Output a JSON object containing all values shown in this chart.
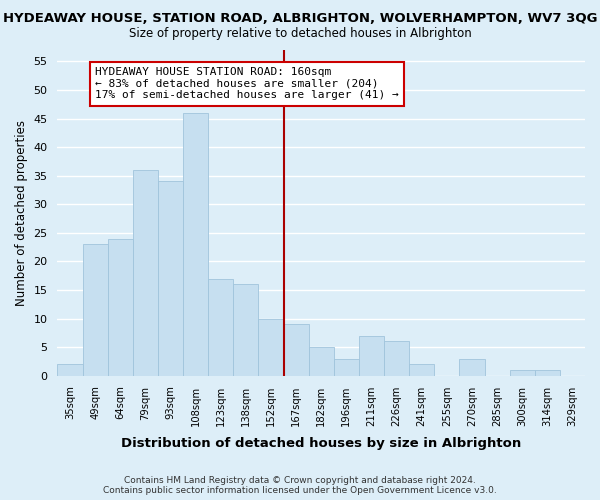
{
  "title": "HYDEAWAY HOUSE, STATION ROAD, ALBRIGHTON, WOLVERHAMPTON, WV7 3QG",
  "subtitle": "Size of property relative to detached houses in Albrighton",
  "xlabel": "Distribution of detached houses by size in Albrighton",
  "ylabel": "Number of detached properties",
  "bar_labels": [
    "35sqm",
    "49sqm",
    "64sqm",
    "79sqm",
    "93sqm",
    "108sqm",
    "123sqm",
    "138sqm",
    "152sqm",
    "167sqm",
    "182sqm",
    "196sqm",
    "211sqm",
    "226sqm",
    "241sqm",
    "255sqm",
    "270sqm",
    "285sqm",
    "300sqm",
    "314sqm",
    "329sqm"
  ],
  "bar_values": [
    2,
    23,
    24,
    36,
    34,
    46,
    17,
    16,
    10,
    9,
    5,
    3,
    7,
    6,
    2,
    0,
    3,
    0,
    1,
    1,
    0
  ],
  "bar_color": "#c6dff0",
  "bar_edge_color": "#a0c4dc",
  "vline_index": 9,
  "vline_color": "#aa0000",
  "annotation_text": "HYDEAWAY HOUSE STATION ROAD: 160sqm\n← 83% of detached houses are smaller (204)\n17% of semi-detached houses are larger (41) →",
  "annotation_box_color": "#ffffff",
  "annotation_box_edge": "#cc0000",
  "ylim": [
    0,
    57
  ],
  "yticks": [
    0,
    5,
    10,
    15,
    20,
    25,
    30,
    35,
    40,
    45,
    50,
    55
  ],
  "footer": "Contains HM Land Registry data © Crown copyright and database right 2024.\nContains public sector information licensed under the Open Government Licence v3.0.",
  "background_color": "#ddeef8",
  "plot_bg_color": "#ddeef8",
  "grid_color": "#ffffff"
}
